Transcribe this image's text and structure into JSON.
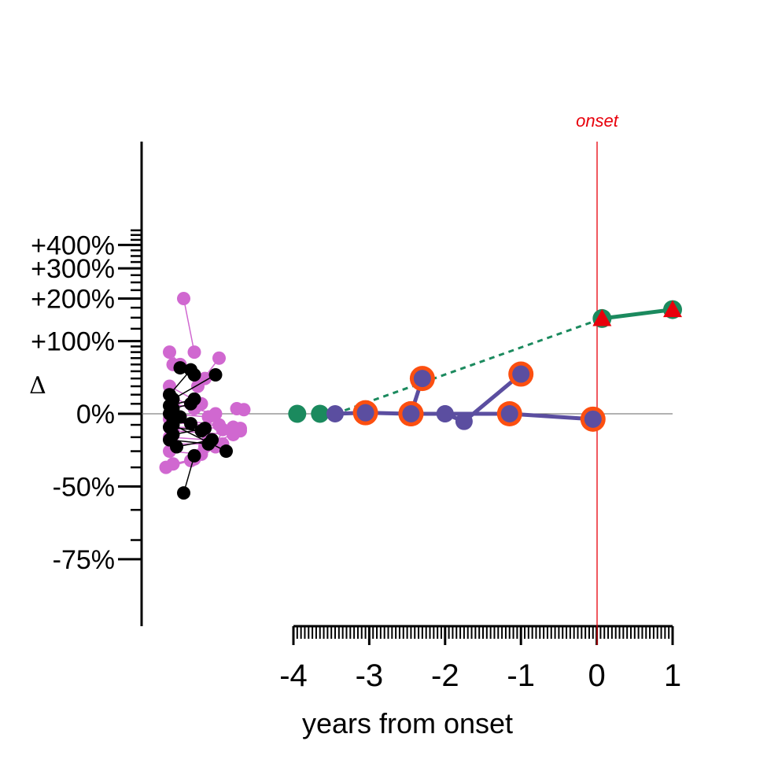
{
  "chart_data": {
    "type": "scatter",
    "xlabel": "years from onset",
    "ylabel": "Δ",
    "onset_label": "onset",
    "x_ticks": [
      "-4",
      "-3",
      "-2",
      "-1",
      "0",
      "1"
    ],
    "x_range": [
      -4,
      1
    ],
    "y_ticks": [
      {
        "label": "+400%",
        "value": 400
      },
      {
        "label": "+300%",
        "value": 300
      },
      {
        "label": "+200%",
        "value": 200
      },
      {
        "label": "+100%",
        "value": 100
      },
      {
        "label": "0%",
        "value": 0
      },
      {
        "label": "-50%",
        "value": -50
      },
      {
        "label": "-75%",
        "value": -75
      }
    ],
    "y_scale": "log ratio (1 + Δ)",
    "grid": false,
    "colors": {
      "green": "#1b8a5e",
      "purple": "#5b4ea0",
      "orange": "#fc4f10",
      "red": "#e8000b",
      "pink": "#d068d0",
      "black": "#000000",
      "zeroline": "#666666"
    },
    "trajectories": [
      {
        "color": "purple",
        "points": [
          [
            -3.45,
            0
          ],
          [
            -3.05,
            1
          ],
          [
            -2.45,
            0
          ],
          [
            -2.0,
            0
          ],
          [
            -1.15,
            0
          ],
          [
            -0.05,
            -5
          ]
        ],
        "ring": [
          false,
          true,
          true,
          false,
          true,
          true
        ]
      },
      {
        "color": "purple",
        "points": [
          [
            -2.45,
            0
          ],
          [
            -2.3,
            40
          ]
        ],
        "ring": [
          true,
          true
        ]
      },
      {
        "color": "purple",
        "points": [
          [
            -2.0,
            0
          ],
          [
            -1.75,
            -7
          ],
          [
            -1.0,
            46
          ]
        ],
        "ring": [
          false,
          false,
          true
        ]
      }
    ],
    "green_points": [
      -3.95,
      -3.65
    ],
    "green_dashed": [
      [
        -3.45,
        0
      ],
      [
        0.07,
        148
      ]
    ],
    "green_solid": [
      [
        0.07,
        148
      ],
      [
        1.0,
        170
      ]
    ],
    "markers_red_triangle": [
      [
        0.07,
        148
      ],
      [
        1.0,
        170
      ]
    ],
    "pink_pairs": [
      [
        [
          -0.1,
          200
        ],
        [
          0.2,
          80
        ]
      ],
      [
        [
          -0.5,
          80
        ],
        [
          -0.2,
          60
        ]
      ],
      [
        [
          -0.4,
          60
        ],
        [
          0.5,
          40
        ]
      ],
      [
        [
          0.9,
          70
        ],
        [
          0.3,
          30
        ]
      ],
      [
        [
          -0.5,
          30
        ],
        [
          0.4,
          10
        ]
      ],
      [
        [
          -0.5,
          20
        ],
        [
          0.2,
          5
        ]
      ],
      [
        [
          -0.4,
          10
        ],
        [
          0.8,
          0
        ]
      ],
      [
        [
          1.4,
          5
        ],
        [
          1.6,
          4
        ]
      ],
      [
        [
          -0.5,
          0
        ],
        [
          0.6,
          -3
        ]
      ],
      [
        [
          -0.5,
          -5
        ],
        [
          0.9,
          -10
        ]
      ],
      [
        [
          -0.4,
          -8
        ],
        [
          1.3,
          -12
        ]
      ],
      [
        [
          -0.5,
          -12
        ],
        [
          1.5,
          -13
        ]
      ],
      [
        [
          -0.4,
          -15
        ],
        [
          1.3,
          -18
        ]
      ],
      [
        [
          -0.5,
          -20
        ],
        [
          0.6,
          -22
        ]
      ],
      [
        [
          -0.4,
          -25
        ],
        [
          1.0,
          -25
        ]
      ],
      [
        [
          -0.5,
          -30
        ],
        [
          0.4,
          -32
        ]
      ],
      [
        [
          -0.4,
          -38
        ],
        [
          0.2,
          -35
        ]
      ],
      [
        [
          1.0,
          -14
        ],
        [
          0.8,
          -27
        ]
      ],
      [
        [
          -0.6,
          -40
        ],
        [
          0.1,
          -36
        ]
      ],
      [
        [
          0.5,
          -27
        ],
        [
          1.5,
          -15
        ]
      ]
    ],
    "black_pairs": [
      [
        [
          -0.5,
          20
        ],
        [
          0.1,
          52
        ]
      ],
      [
        [
          -0.2,
          55
        ],
        [
          0.2,
          45
        ]
      ],
      [
        [
          -0.4,
          15
        ],
        [
          0.8,
          45
        ]
      ],
      [
        [
          -0.5,
          8
        ],
        [
          0.2,
          15
        ]
      ],
      [
        [
          -0.4,
          5
        ],
        [
          0.1,
          10
        ]
      ],
      [
        [
          -0.5,
          0
        ],
        [
          -0.2,
          -3
        ]
      ],
      [
        [
          -0.4,
          -7
        ],
        [
          0.1,
          -9
        ]
      ],
      [
        [
          -0.5,
          -12
        ],
        [
          0.4,
          -15
        ]
      ],
      [
        [
          -0.4,
          -18
        ],
        [
          0.5,
          -13
        ]
      ],
      [
        [
          -0.5,
          -22
        ],
        [
          0.6,
          -25
        ]
      ],
      [
        [
          -0.3,
          -27
        ],
        [
          0.7,
          -22
        ]
      ],
      [
        [
          -0.1,
          -53
        ],
        [
          0.2,
          -33
        ]
      ],
      [
        [
          -0.4,
          -10
        ],
        [
          1.1,
          -30
        ]
      ]
    ]
  }
}
